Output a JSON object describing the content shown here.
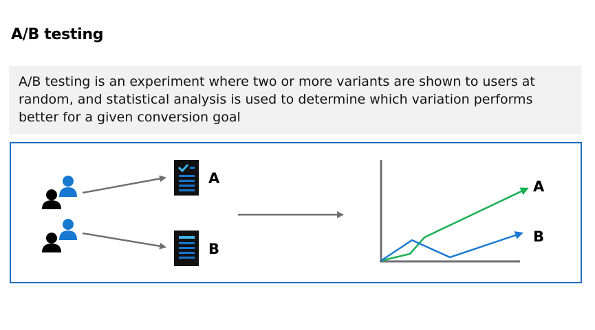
{
  "page": {
    "title": "A/B testing",
    "definition": "A/B testing is an experiment where two or more variants are shown to users at random, and statistical analysis is used to determine which variation performs better for a given conversion goal"
  },
  "diagram": {
    "variant_a_label": "A",
    "variant_b_label": "B",
    "chart_label_a": "A",
    "chart_label_b": "B",
    "colors": {
      "frame": "#1f6fc0",
      "arrow": "#6e6e73",
      "user_front": "#000000",
      "user_back": "#1778d2",
      "document": "#111111",
      "document_lines": "#1778d2",
      "check": "#3fb5e8",
      "line_a": "#19b055",
      "line_b": "#1778d2",
      "axes": "#6e6e73"
    },
    "icons": [
      "users-icon",
      "document-check-icon",
      "document-icon"
    ]
  }
}
